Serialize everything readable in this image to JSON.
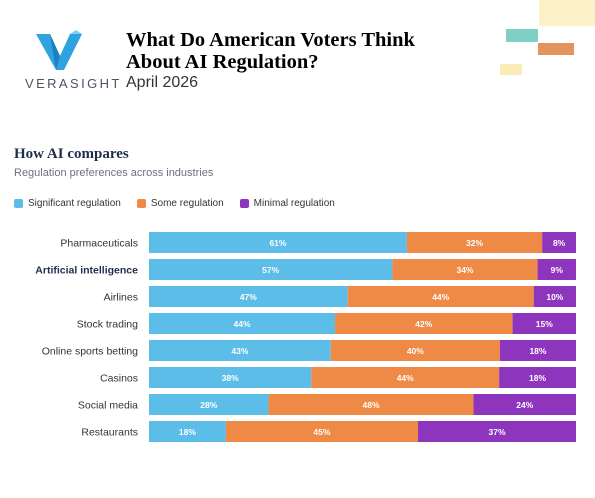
{
  "header": {
    "logo_text": "VERASIGHT",
    "title_line1": "What Do American Voters Think",
    "title_line2": "About AI Regulation?",
    "date": "April 2026"
  },
  "colors": {
    "significant": "#5cbde9",
    "some": "#ee8a46",
    "minimal": "#8e35bd",
    "logo": "#2ea3e0"
  },
  "chart_data": {
    "type": "bar",
    "orientation": "horizontal",
    "stacked": true,
    "title": "How AI compares",
    "subtitle": "Regulation preferences across industries",
    "legend_position": "top-left",
    "categories": [
      "Pharmaceuticals",
      "Artificial intelligence",
      "Airlines",
      "Stock trading",
      "Online sports betting",
      "Casinos",
      "Social media",
      "Restaurants"
    ],
    "highlighted_category": "Artificial intelligence",
    "series": [
      {
        "name": "Significant regulation",
        "values": [
          61,
          57,
          47,
          44,
          43,
          38,
          28,
          18
        ]
      },
      {
        "name": "Some regulation",
        "values": [
          32,
          34,
          44,
          42,
          40,
          44,
          48,
          45
        ]
      },
      {
        "name": "Minimal regulation",
        "values": [
          8,
          9,
          10,
          15,
          18,
          18,
          24,
          37
        ]
      }
    ]
  }
}
